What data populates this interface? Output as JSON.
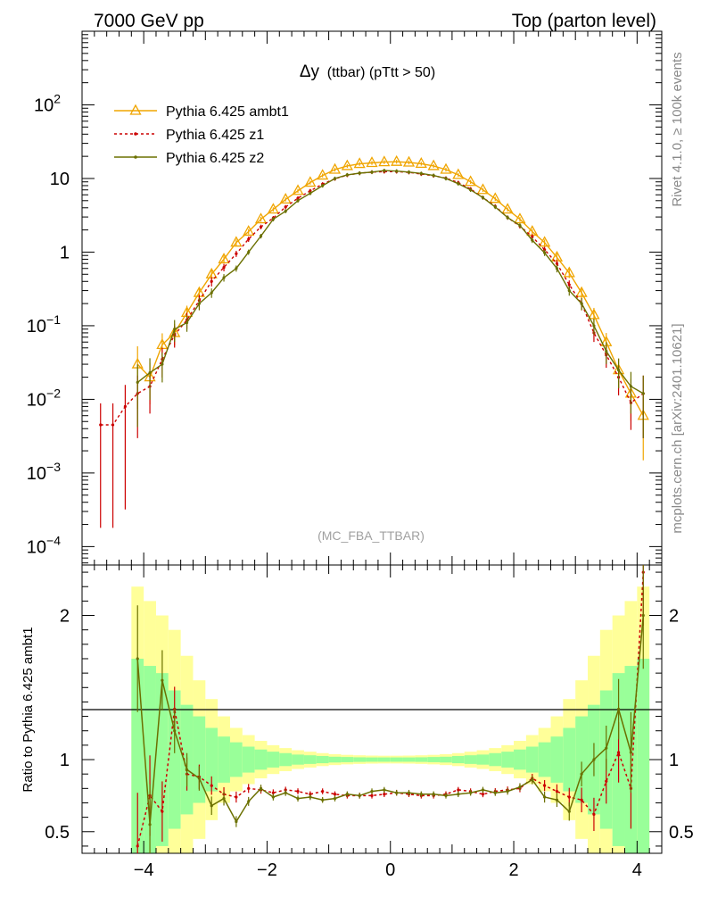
{
  "header": {
    "left": "7000 GeV pp",
    "right": "Top (parton level)"
  },
  "side_labels": {
    "rivet": "Rivet 4.1.0, ≥ 100k events",
    "mcplots": "mcplots.cern.ch [arXiv:2401.10621]"
  },
  "chart_data": {
    "type": "line",
    "title": "Δy",
    "title_suffix": "(ttbar) (pTtt > 50)",
    "watermark": "(MC_FBA_TTBAR)",
    "xlabel": "",
    "ylabel_main": "",
    "ylabel_ratio": "Ratio to Pythia 6.425 ambt1",
    "xlim": [
      -5,
      4.4
    ],
    "ylim_main_log10": [
      -4.25,
      3.0
    ],
    "ylim_ratio": [
      0.35,
      2.35
    ],
    "x_ticks": [
      {
        "value": -4,
        "label": "−4"
      },
      {
        "value": -2,
        "label": "−2"
      },
      {
        "value": 0,
        "label": "0"
      },
      {
        "value": 2,
        "label": "2"
      },
      {
        "value": 4,
        "label": "4"
      }
    ],
    "y_ticks_main": [
      {
        "exp": 2,
        "label": "10",
        "sup": "2"
      },
      {
        "exp": 1,
        "label": "10",
        "sup": ""
      },
      {
        "exp": 0,
        "label": "1",
        "sup": ""
      },
      {
        "exp": -1,
        "label": "10",
        "sup": "−1"
      },
      {
        "exp": -2,
        "label": "10",
        "sup": "−2"
      },
      {
        "exp": -3,
        "label": "10",
        "sup": "−3"
      },
      {
        "exp": -4,
        "label": "10",
        "sup": "−4"
      }
    ],
    "y_ticks_ratio": [
      {
        "value": 0.5,
        "label": "0.5"
      },
      {
        "value": 1,
        "label": "1"
      },
      {
        "value": 2,
        "label": "2"
      }
    ],
    "series": [
      {
        "name": "Pythia 6.425 ambt1",
        "color": "#f0a500",
        "marker": "triangle",
        "x": [
          -4.1,
          -3.9,
          -3.7,
          -3.5,
          -3.3,
          -3.1,
          -2.9,
          -2.7,
          -2.5,
          -2.3,
          -2.1,
          -1.9,
          -1.7,
          -1.5,
          -1.3,
          -1.1,
          -0.9,
          -0.7,
          -0.5,
          -0.3,
          -0.1,
          0.1,
          0.3,
          0.5,
          0.7,
          0.9,
          1.1,
          1.3,
          1.5,
          1.7,
          1.9,
          2.1,
          2.3,
          2.5,
          2.7,
          2.9,
          3.1,
          3.3,
          3.5,
          3.7,
          3.9,
          4.1
        ],
        "y": [
          0.03,
          0.02,
          0.055,
          0.08,
          0.15,
          0.28,
          0.5,
          0.8,
          1.35,
          1.9,
          2.8,
          3.8,
          5.2,
          6.8,
          8.8,
          11.0,
          13.2,
          14.8,
          15.8,
          16.3,
          16.7,
          16.9,
          16.5,
          15.9,
          14.8,
          13.2,
          11.2,
          9.0,
          7.0,
          5.3,
          3.8,
          2.8,
          1.9,
          1.35,
          0.85,
          0.52,
          0.28,
          0.14,
          0.06,
          0.025,
          0.012,
          0.006
        ]
      },
      {
        "name": "Pythia 6.425 z1",
        "color": "#cc0000",
        "marker": "dot",
        "x": [
          -4.7,
          -4.5,
          -4.3,
          -4.1,
          -3.9,
          -3.7,
          -3.5,
          -3.3,
          -3.1,
          -2.9,
          -2.7,
          -2.5,
          -2.3,
          -2.1,
          -1.9,
          -1.7,
          -1.5,
          -1.3,
          -1.1,
          -0.9,
          -0.7,
          -0.5,
          -0.3,
          -0.1,
          0.1,
          0.3,
          0.5,
          0.7,
          0.9,
          1.1,
          1.3,
          1.5,
          1.7,
          1.9,
          2.1,
          2.3,
          2.5,
          2.7,
          2.9,
          3.1,
          3.3,
          3.5,
          3.7,
          3.9,
          4.1
        ],
        "y": [
          0.0045,
          0.0045,
          0.008,
          0.012,
          0.015,
          0.035,
          0.075,
          0.12,
          0.22,
          0.4,
          0.62,
          0.95,
          1.5,
          2.2,
          2.9,
          4.1,
          5.4,
          6.8,
          8.4,
          9.9,
          11.1,
          11.8,
          12.2,
          12.4,
          12.4,
          12.1,
          11.5,
          10.9,
          10.1,
          8.8,
          7.2,
          5.5,
          4.2,
          2.95,
          2.25,
          1.62,
          1.08,
          0.7,
          0.36,
          0.2,
          0.08,
          0.04,
          0.02,
          0.009,
          0.012
        ]
      },
      {
        "name": "Pythia 6.425 z2",
        "color": "#6b7000",
        "marker": "dot",
        "x": [
          -4.1,
          -3.9,
          -3.7,
          -3.5,
          -3.3,
          -3.1,
          -2.9,
          -2.7,
          -2.5,
          -2.3,
          -2.1,
          -1.9,
          -1.7,
          -1.5,
          -1.3,
          -1.1,
          -0.9,
          -0.7,
          -0.5,
          -0.3,
          -0.1,
          0.1,
          0.3,
          0.5,
          0.7,
          0.9,
          1.1,
          1.3,
          1.5,
          1.7,
          1.9,
          2.1,
          2.3,
          2.5,
          2.7,
          2.9,
          3.1,
          3.3,
          3.5,
          3.7,
          3.9,
          4.1
        ],
        "y": [
          0.017,
          0.023,
          0.03,
          0.09,
          0.11,
          0.2,
          0.28,
          0.45,
          0.6,
          1.0,
          1.65,
          2.8,
          3.6,
          5.0,
          6.3,
          8.0,
          10.0,
          11.2,
          11.8,
          12.2,
          12.8,
          12.6,
          12.2,
          11.7,
          11.0,
          10.0,
          8.5,
          7.0,
          5.5,
          4.1,
          2.95,
          2.3,
          1.45,
          0.98,
          0.6,
          0.3,
          0.2,
          0.1,
          0.045,
          0.025,
          0.015,
          0.012
        ]
      }
    ],
    "ratio_series": [
      {
        "name": "Pythia 6.425 z1",
        "x": [
          -4.1,
          -3.9,
          -3.7,
          -3.5,
          -3.3,
          -3.1,
          -2.9,
          -2.7,
          -2.5,
          -2.3,
          -2.1,
          -1.9,
          -1.7,
          -1.5,
          -1.3,
          -1.1,
          -0.9,
          -0.7,
          -0.5,
          -0.3,
          -0.1,
          0.1,
          0.3,
          0.5,
          0.7,
          0.9,
          1.1,
          1.3,
          1.5,
          1.7,
          1.9,
          2.1,
          2.3,
          2.5,
          2.7,
          2.9,
          3.1,
          3.3,
          3.5,
          3.7,
          3.9,
          4.1
        ],
        "y": [
          0.4,
          0.75,
          0.64,
          1.35,
          0.9,
          0.88,
          0.82,
          0.76,
          0.74,
          0.8,
          0.79,
          0.77,
          0.79,
          0.78,
          0.76,
          0.78,
          0.76,
          0.75,
          0.75,
          0.75,
          0.76,
          0.77,
          0.76,
          0.75,
          0.75,
          0.76,
          0.79,
          0.78,
          0.76,
          0.78,
          0.79,
          0.8,
          0.87,
          0.82,
          0.78,
          0.74,
          0.72,
          0.62,
          0.85,
          1.05,
          0.8,
          2.3
        ]
      },
      {
        "name": "Pythia 6.425 z2",
        "x": [
          -4.1,
          -3.9,
          -3.7,
          -3.5,
          -3.3,
          -3.1,
          -2.9,
          -2.7,
          -2.5,
          -2.3,
          -2.1,
          -1.9,
          -1.7,
          -1.5,
          -1.3,
          -1.1,
          -0.9,
          -0.7,
          -0.5,
          -0.3,
          -0.1,
          0.1,
          0.3,
          0.5,
          0.7,
          0.9,
          1.1,
          1.3,
          1.5,
          1.7,
          1.9,
          2.1,
          2.3,
          2.5,
          2.7,
          2.9,
          3.1,
          3.3,
          3.5,
          3.7,
          3.9,
          4.1
        ],
        "y": [
          1.7,
          0.55,
          1.55,
          1.2,
          0.93,
          0.87,
          0.68,
          0.73,
          0.57,
          0.71,
          0.8,
          0.74,
          0.77,
          0.73,
          0.74,
          0.72,
          0.73,
          0.76,
          0.75,
          0.78,
          0.79,
          0.77,
          0.77,
          0.76,
          0.76,
          0.75,
          0.76,
          0.77,
          0.79,
          0.77,
          0.78,
          0.81,
          0.86,
          0.74,
          0.72,
          0.64,
          0.9,
          1.0,
          1.08,
          1.35,
          1.05,
          2.0
        ]
      }
    ],
    "ratio_bands": {
      "x_edges": [
        -4.2,
        -4.0,
        -3.8,
        -3.6,
        -3.4,
        -3.2,
        -3.0,
        -2.8,
        -2.6,
        -2.4,
        -2.2,
        -2.0,
        -1.8,
        -1.6,
        -1.4,
        -1.2,
        -1.0,
        -0.8,
        -0.6,
        -0.4,
        -0.2,
        0.0,
        0.2,
        0.4,
        0.6,
        0.8,
        1.0,
        1.2,
        1.4,
        1.6,
        1.8,
        2.0,
        2.2,
        2.4,
        2.6,
        2.8,
        3.0,
        3.2,
        3.4,
        3.6,
        3.8,
        4.0,
        4.2
      ],
      "inner": [
        0.7,
        0.65,
        0.6,
        0.48,
        0.38,
        0.3,
        0.22,
        0.16,
        0.12,
        0.09,
        0.07,
        0.055,
        0.045,
        0.035,
        0.03,
        0.025,
        0.02,
        0.018,
        0.016,
        0.015,
        0.015,
        0.015,
        0.015,
        0.016,
        0.018,
        0.02,
        0.025,
        0.03,
        0.035,
        0.045,
        0.055,
        0.07,
        0.09,
        0.12,
        0.16,
        0.22,
        0.3,
        0.38,
        0.48,
        0.6,
        0.65,
        0.7
      ],
      "outer": [
        1.2,
        1.1,
        1.0,
        0.9,
        0.72,
        0.55,
        0.42,
        0.3,
        0.22,
        0.17,
        0.13,
        0.1,
        0.08,
        0.065,
        0.055,
        0.045,
        0.038,
        0.033,
        0.03,
        0.028,
        0.027,
        0.027,
        0.028,
        0.03,
        0.033,
        0.038,
        0.045,
        0.055,
        0.065,
        0.08,
        0.1,
        0.13,
        0.17,
        0.22,
        0.3,
        0.42,
        0.55,
        0.72,
        0.9,
        1.0,
        1.1,
        1.2
      ]
    }
  }
}
